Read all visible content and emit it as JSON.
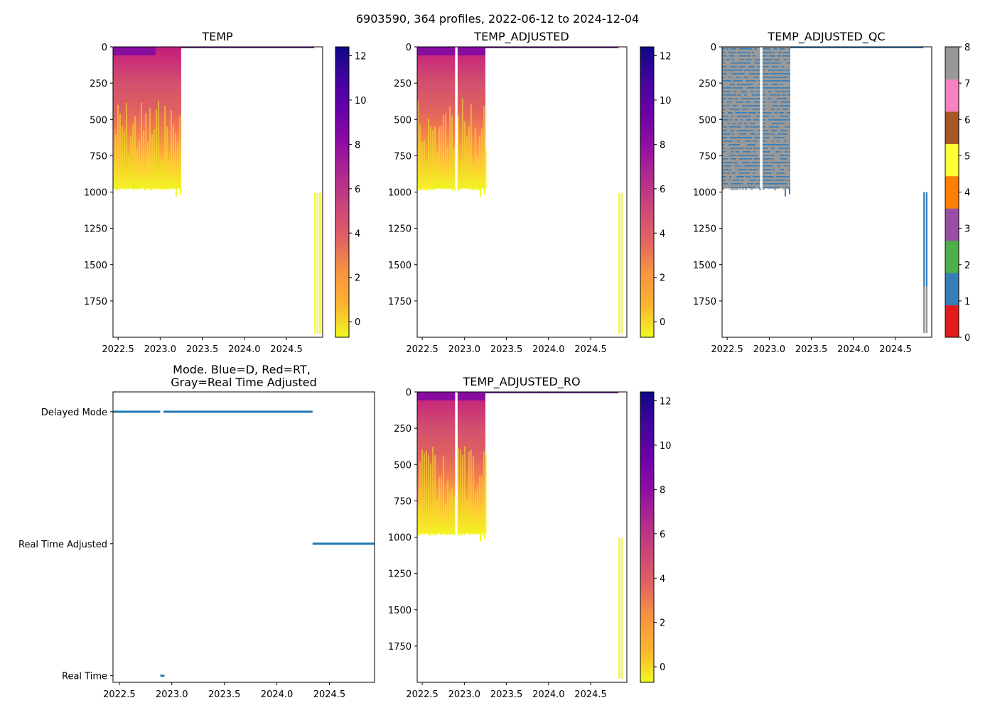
{
  "figure": {
    "suptitle": "6903590, 364 profiles, 2022-06-12 to 2024-12-04"
  },
  "colors": {
    "plasma_r": [
      "#f0f921",
      "#fdb42f",
      "#f89540",
      "#e16462",
      "#cc4778",
      "#b12a90",
      "#8f0da4",
      "#6a00a8",
      "#41049d",
      "#0d0887"
    ],
    "qc": [
      "#e41a1c",
      "#377eb8",
      "#4daf4a",
      "#984ea3",
      "#ff7f00",
      "#ffff33",
      "#a65628",
      "#f781bf",
      "#999999"
    ],
    "mode_line": "#1f77b4"
  },
  "chart_data": [
    {
      "id": "temp",
      "type": "heatmap",
      "title": "TEMP",
      "x_ticks": [
        "2022.5",
        "2023.0",
        "2023.5",
        "2024.0",
        "2024.5"
      ],
      "x_tick_values": [
        2022.5,
        2023.0,
        2023.5,
        2024.0,
        2024.5
      ],
      "xlim": [
        2022.44,
        2024.93
      ],
      "y_ticks": [
        "0",
        "250",
        "500",
        "750",
        "1000",
        "1250",
        "1500",
        "1750"
      ],
      "y_tick_values": [
        0,
        250,
        500,
        750,
        1000,
        1250,
        1500,
        1750
      ],
      "ylim": [
        2000,
        0
      ],
      "colorbar": {
        "cmap": "plasma_r",
        "range": [
          -0.7,
          12.4
        ],
        "ticks": [
          "0",
          "2",
          "4",
          "6",
          "8",
          "10",
          "12"
        ],
        "tick_values": [
          0,
          2,
          4,
          6,
          8,
          10,
          12
        ]
      },
      "segments": [
        {
          "start": 2022.44,
          "end": 2023.25
        }
      ],
      "deep_profiles": [
        2024.83,
        2024.86,
        2024.89
      ],
      "surface_values": {
        "range": [
          2023.25,
          2024.83
        ],
        "depth": 8
      }
    },
    {
      "id": "temp_adjusted",
      "type": "heatmap",
      "title": "TEMP_ADJUSTED",
      "x_ticks": [
        "2022.5",
        "2023.0",
        "2023.5",
        "2024.0",
        "2024.5"
      ],
      "x_tick_values": [
        2022.5,
        2023.0,
        2023.5,
        2024.0,
        2024.5
      ],
      "xlim": [
        2022.44,
        2024.93
      ],
      "y_ticks": [
        "0",
        "250",
        "500",
        "750",
        "1000",
        "1250",
        "1500",
        "1750"
      ],
      "y_tick_values": [
        0,
        250,
        500,
        750,
        1000,
        1250,
        1500,
        1750
      ],
      "ylim": [
        2000,
        0
      ],
      "colorbar": {
        "cmap": "plasma_r",
        "range": [
          -0.7,
          12.4
        ],
        "ticks": [
          "0",
          "2",
          "4",
          "6",
          "8",
          "10",
          "12"
        ],
        "tick_values": [
          0,
          2,
          4,
          6,
          8,
          10,
          12
        ]
      },
      "segments": [
        {
          "start": 2022.44,
          "end": 2022.89
        },
        {
          "start": 2022.92,
          "end": 2023.25
        }
      ],
      "deep_profiles": [
        2024.83,
        2024.86
      ],
      "surface_values": {
        "range": [
          2023.25,
          2024.83
        ],
        "depth": 8
      }
    },
    {
      "id": "temp_adjusted_qc",
      "type": "heatmap",
      "title": "TEMP_ADJUSTED_QC",
      "x_ticks": [
        "2022.5",
        "2023.0",
        "2023.5",
        "2024.0",
        "2024.5"
      ],
      "x_tick_values": [
        2022.5,
        2023.0,
        2023.5,
        2024.0,
        2024.5
      ],
      "xlim": [
        2022.44,
        2024.93
      ],
      "y_ticks": [
        "0",
        "250",
        "500",
        "750",
        "1000",
        "1250",
        "1500",
        "1750"
      ],
      "y_tick_values": [
        0,
        250,
        500,
        750,
        1000,
        1250,
        1500,
        1750
      ],
      "ylim": [
        2000,
        0
      ],
      "colorbar": {
        "cmap": "qc",
        "range": [
          0,
          8
        ],
        "ticks": [
          "0",
          "1",
          "2",
          "3",
          "4",
          "5",
          "6",
          "7",
          "8"
        ],
        "tick_values": [
          0,
          1,
          2,
          3,
          4,
          5,
          6,
          7,
          8
        ]
      },
      "segments": [
        {
          "start": 2022.44,
          "end": 2022.89
        },
        {
          "start": 2022.92,
          "end": 2023.25
        }
      ],
      "qc_values": [
        1,
        8
      ],
      "deep_profiles": [
        2024.83,
        2024.86
      ],
      "surface_values": {
        "range": [
          2023.25,
          2024.83
        ],
        "depth": 8
      }
    },
    {
      "id": "mode",
      "type": "scatter",
      "title": "Mode. Blue=D, Red=RT,\nGray=Real Time Adjusted",
      "title_lines": [
        "Mode. Blue=D, Red=RT,",
        "Gray=Real Time Adjusted"
      ],
      "x_ticks": [
        "2022.5",
        "2023.0",
        "2023.5",
        "2024.0",
        "2024.5"
      ],
      "x_tick_values": [
        2022.5,
        2023.0,
        2023.5,
        2024.0,
        2024.5
      ],
      "xlim": [
        2022.44,
        2024.93
      ],
      "categories": [
        "Delayed Mode",
        "Real Time Adjusted",
        "Real Time"
      ],
      "category_values": [
        1,
        0.5,
        0
      ],
      "ylim": [
        -0.025,
        1.075
      ],
      "series": [
        {
          "name": "Delayed Mode",
          "y": 1,
          "ranges": [
            [
              2022.44,
              2022.89
            ],
            [
              2022.92,
              2024.34
            ]
          ]
        },
        {
          "name": "Real Time Adjusted",
          "y": 0.5,
          "ranges": [
            [
              2024.34,
              2024.93
            ]
          ]
        },
        {
          "name": "Real Time",
          "y": 0,
          "ranges": [
            [
              2022.89,
              2022.93
            ]
          ]
        }
      ]
    },
    {
      "id": "temp_adjusted_ro",
      "type": "heatmap",
      "title": "TEMP_ADJUSTED_RO",
      "x_ticks": [
        "2022.5",
        "2023.0",
        "2023.5",
        "2024.0",
        "2024.5"
      ],
      "x_tick_values": [
        2022.5,
        2023.0,
        2023.5,
        2024.0,
        2024.5
      ],
      "xlim": [
        2022.44,
        2024.93
      ],
      "y_ticks": [
        "0",
        "250",
        "500",
        "750",
        "1000",
        "1250",
        "1500",
        "1750"
      ],
      "y_tick_values": [
        0,
        250,
        500,
        750,
        1000,
        1250,
        1500,
        1750
      ],
      "ylim": [
        2000,
        0
      ],
      "colorbar": {
        "cmap": "plasma_r",
        "range": [
          -0.7,
          12.4
        ],
        "ticks": [
          "0",
          "2",
          "4",
          "6",
          "8",
          "10",
          "12"
        ],
        "tick_values": [
          0,
          2,
          4,
          6,
          8,
          10,
          12
        ]
      },
      "segments": [
        {
          "start": 2022.44,
          "end": 2022.89
        },
        {
          "start": 2022.92,
          "end": 2023.25
        }
      ],
      "deep_profiles": [
        2024.83,
        2024.86
      ],
      "surface_values": {
        "range": [
          2023.25,
          2024.83
        ],
        "depth": 8
      }
    }
  ]
}
